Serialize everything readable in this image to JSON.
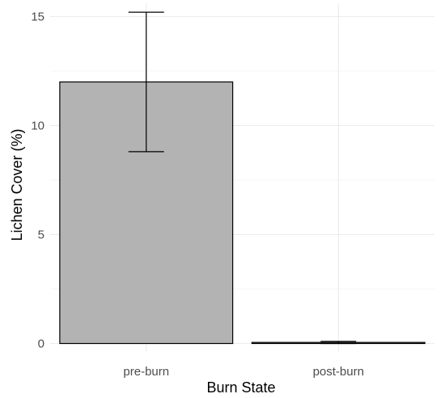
{
  "chart_data": {
    "type": "bar",
    "categories": [
      "pre-burn",
      "post-burn"
    ],
    "values": [
      12.0,
      0.05
    ],
    "error_bars": [
      {
        "lower": 8.8,
        "upper": 15.2
      },
      {
        "lower": 0.0,
        "upper": 0.1
      }
    ],
    "xlabel": "Burn State",
    "ylabel": "Lichen Cover (%)",
    "ylim": [
      0,
      15.6
    ],
    "yticks": [
      0,
      5,
      10,
      15
    ],
    "grid": true,
    "legend": "none",
    "colors": {
      "bar_fill": "#b3b3b3",
      "bar_stroke": "#000000",
      "grid": "#ebebeb"
    }
  }
}
